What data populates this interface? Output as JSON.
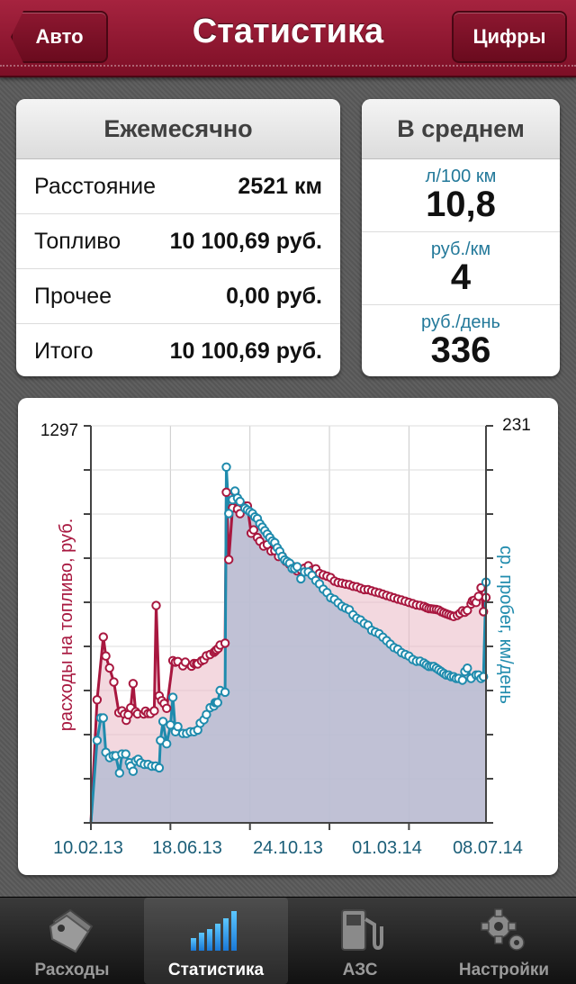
{
  "nav": {
    "title": "Статистика",
    "back_label": "Авто",
    "right_label": "Цифры"
  },
  "monthly": {
    "header": "Ежемесячно",
    "rows": [
      {
        "label": "Расстояние",
        "value": "2521 км"
      },
      {
        "label": "Топливо",
        "value": "10 100,69 руб."
      },
      {
        "label": "Прочее",
        "value": "0,00 руб."
      },
      {
        "label": "Итого",
        "value": "10 100,69 руб."
      }
    ]
  },
  "average": {
    "header": "В среднем",
    "items": [
      {
        "label": "л/100 км",
        "value": "10,8"
      },
      {
        "label": "руб./км",
        "value": "4"
      },
      {
        "label": "руб./день",
        "value": "336"
      }
    ]
  },
  "chart_data": {
    "type": "area",
    "x_tick_labels": [
      "10.02.13",
      "18.06.13",
      "24.10.13",
      "01.03.14",
      "08.07.14"
    ],
    "x_range": [
      "10.02.13",
      "08.07.14"
    ],
    "y_left": {
      "label": "расходы на топливо, руб.",
      "max_label": "1297",
      "range": [
        0,
        1297
      ]
    },
    "y_right": {
      "label": "ср. пробег, км/день",
      "max_label": "231",
      "range": [
        0,
        231
      ]
    },
    "grid": true,
    "series": [
      {
        "name": "расходы на топливо, руб.",
        "axis": "left",
        "color": "#a8173f",
        "fill": "#e9b8c4",
        "points": [
          [
            0,
            0
          ],
          [
            10,
            402
          ],
          [
            20,
            607
          ],
          [
            24,
            545
          ],
          [
            30,
            506
          ],
          [
            37,
            460
          ],
          [
            45,
            360
          ],
          [
            50,
            366
          ],
          [
            54,
            355
          ],
          [
            57,
            335
          ],
          [
            60,
            353
          ],
          [
            64,
            376
          ],
          [
            68,
            455
          ],
          [
            72,
            363
          ],
          [
            75,
            356
          ],
          [
            85,
            356
          ],
          [
            88,
            365
          ],
          [
            92,
            357
          ],
          [
            96,
            357
          ],
          [
            102,
            366
          ],
          [
            105,
            710
          ],
          [
            110,
            415
          ],
          [
            114,
            399
          ],
          [
            118,
            390
          ],
          [
            122,
            374
          ],
          [
            132,
            530
          ],
          [
            136,
            525
          ],
          [
            140,
            527
          ],
          [
            148,
            513
          ],
          [
            152,
            525
          ],
          [
            162,
            512
          ],
          [
            166,
            521
          ],
          [
            170,
            520
          ],
          [
            172,
            519
          ],
          [
            178,
            529
          ],
          [
            182,
            533
          ],
          [
            186,
            546
          ],
          [
            192,
            550
          ],
          [
            198,
            557
          ],
          [
            200,
            561
          ],
          [
            202,
            565
          ],
          [
            205,
            570
          ],
          [
            208,
            581
          ],
          [
            216,
            587
          ],
          [
            218,
            1080
          ],
          [
            222,
            860
          ],
          [
            228,
            1029
          ],
          [
            232,
            1080
          ],
          [
            236,
            1025
          ],
          [
            240,
            1010
          ],
          [
            248,
            1035
          ],
          [
            252,
            1035
          ],
          [
            258,
            946
          ],
          [
            262,
            957
          ],
          [
            268,
            932
          ],
          [
            272,
            920
          ],
          [
            278,
            904
          ],
          [
            284,
            909
          ],
          [
            290,
            888
          ],
          [
            296,
            889
          ],
          [
            302,
            870
          ],
          [
            308,
            871
          ],
          [
            314,
            854
          ],
          [
            320,
            844
          ],
          [
            326,
            837
          ],
          [
            332,
            823
          ],
          [
            338,
            827
          ],
          [
            344,
            832
          ],
          [
            350,
            840
          ],
          [
            356,
            825
          ],
          [
            362,
            830
          ],
          [
            368,
            815
          ],
          [
            374,
            810
          ],
          [
            380,
            806
          ],
          [
            386,
            801
          ],
          [
            392,
            790
          ],
          [
            398,
            785
          ],
          [
            404,
            783
          ],
          [
            410,
            780
          ],
          [
            416,
            778
          ],
          [
            422,
            773
          ],
          [
            428,
            771
          ],
          [
            434,
            766
          ],
          [
            440,
            762
          ],
          [
            446,
            762
          ],
          [
            452,
            758
          ],
          [
            458,
            754
          ],
          [
            464,
            751
          ],
          [
            470,
            747
          ],
          [
            476,
            743
          ],
          [
            482,
            739
          ],
          [
            488,
            735
          ],
          [
            494,
            731
          ],
          [
            500,
            728
          ],
          [
            506,
            724
          ],
          [
            512,
            720
          ],
          [
            518,
            716
          ],
          [
            524,
            712
          ],
          [
            530,
            710
          ],
          [
            536,
            707
          ],
          [
            540,
            703
          ],
          [
            544,
            700
          ],
          [
            548,
            699
          ],
          [
            552,
            698
          ],
          [
            556,
            697
          ],
          [
            560,
            695
          ],
          [
            564,
            690
          ],
          [
            568,
            686
          ],
          [
            572,
            683
          ],
          [
            576,
            680
          ],
          [
            580,
            677
          ],
          [
            584,
            674
          ],
          [
            590,
            678
          ],
          [
            594,
            684
          ],
          [
            598,
            693
          ],
          [
            602,
            688
          ],
          [
            606,
            694
          ],
          [
            612,
            715
          ],
          [
            614,
            725
          ],
          [
            617,
            727
          ],
          [
            620,
            720
          ],
          [
            624,
            740
          ],
          [
            628,
            768
          ],
          [
            632,
            690
          ],
          [
            636,
            736
          ]
        ]
      },
      {
        "name": "ср. пробег, км/день",
        "axis": "right",
        "color": "#1f8bad",
        "fill": "#b6bdd3",
        "points": [
          [
            0,
            0
          ],
          [
            10,
            48
          ],
          [
            16,
            61
          ],
          [
            20,
            61
          ],
          [
            24,
            41
          ],
          [
            30,
            38
          ],
          [
            36,
            39
          ],
          [
            40,
            39
          ],
          [
            46,
            29
          ],
          [
            50,
            40
          ],
          [
            56,
            40
          ],
          [
            62,
            35
          ],
          [
            64,
            33
          ],
          [
            68,
            30
          ],
          [
            72,
            36
          ],
          [
            76,
            37
          ],
          [
            80,
            35
          ],
          [
            86,
            34
          ],
          [
            92,
            34
          ],
          [
            98,
            33
          ],
          [
            104,
            33
          ],
          [
            110,
            32
          ],
          [
            112,
            48
          ],
          [
            116,
            59
          ],
          [
            122,
            46
          ],
          [
            128,
            57
          ],
          [
            132,
            73
          ],
          [
            136,
            53
          ],
          [
            140,
            56
          ],
          [
            148,
            52
          ],
          [
            154,
            52
          ],
          [
            160,
            53
          ],
          [
            166,
            53
          ],
          [
            172,
            54
          ],
          [
            176,
            58
          ],
          [
            182,
            60
          ],
          [
            186,
            63
          ],
          [
            192,
            67
          ],
          [
            198,
            68
          ],
          [
            200,
            70
          ],
          [
            202,
            70
          ],
          [
            204,
            70
          ],
          [
            208,
            77
          ],
          [
            216,
            76
          ],
          [
            218,
            207
          ],
          [
            222,
            180
          ],
          [
            228,
            188
          ],
          [
            232,
            193
          ],
          [
            236,
            189
          ],
          [
            240,
            187
          ],
          [
            248,
            183
          ],
          [
            252,
            182
          ],
          [
            256,
            181
          ],
          [
            260,
            180
          ],
          [
            264,
            178
          ],
          [
            268,
            177
          ],
          [
            272,
            174
          ],
          [
            276,
            172
          ],
          [
            280,
            170
          ],
          [
            284,
            168
          ],
          [
            288,
            166
          ],
          [
            292,
            164
          ],
          [
            296,
            163
          ],
          [
            300,
            160
          ],
          [
            304,
            158
          ],
          [
            308,
            155
          ],
          [
            312,
            153
          ],
          [
            316,
            152
          ],
          [
            320,
            151
          ],
          [
            324,
            148
          ],
          [
            328,
            148
          ],
          [
            332,
            149
          ],
          [
            338,
            142
          ],
          [
            344,
            146
          ],
          [
            350,
            146
          ],
          [
            356,
            144
          ],
          [
            362,
            141
          ],
          [
            368,
            139
          ],
          [
            374,
            136
          ],
          [
            380,
            134
          ],
          [
            386,
            131
          ],
          [
            392,
            130
          ],
          [
            398,
            128
          ],
          [
            404,
            126
          ],
          [
            410,
            125
          ],
          [
            416,
            124
          ],
          [
            422,
            121
          ],
          [
            428,
            119
          ],
          [
            434,
            118
          ],
          [
            440,
            116
          ],
          [
            446,
            115
          ],
          [
            452,
            112
          ],
          [
            458,
            111
          ],
          [
            464,
            110
          ],
          [
            470,
            108
          ],
          [
            476,
            106
          ],
          [
            482,
            104
          ],
          [
            488,
            102
          ],
          [
            494,
            101
          ],
          [
            500,
            99
          ],
          [
            506,
            98
          ],
          [
            512,
            97
          ],
          [
            518,
            95
          ],
          [
            524,
            94
          ],
          [
            530,
            94
          ],
          [
            536,
            93
          ],
          [
            540,
            92
          ],
          [
            544,
            91
          ],
          [
            548,
            91
          ],
          [
            552,
            91
          ],
          [
            556,
            90
          ],
          [
            560,
            89
          ],
          [
            564,
            88
          ],
          [
            568,
            87
          ],
          [
            572,
            86
          ],
          [
            576,
            86
          ],
          [
            580,
            85
          ],
          [
            584,
            85
          ],
          [
            588,
            84
          ],
          [
            592,
            84
          ],
          [
            598,
            83
          ],
          [
            602,
            88
          ],
          [
            606,
            90
          ],
          [
            612,
            84
          ],
          [
            620,
            86
          ],
          [
            624,
            86
          ],
          [
            628,
            84
          ],
          [
            632,
            85
          ],
          [
            636,
            140
          ]
        ]
      }
    ]
  },
  "tabs": [
    {
      "label": "Расходы",
      "icon": "tags-icon"
    },
    {
      "label": "Статистика",
      "icon": "bar-chart-icon"
    },
    {
      "label": "АЗС",
      "icon": "fuel-pump-icon"
    },
    {
      "label": "Настройки",
      "icon": "gears-icon"
    }
  ],
  "active_tab": 1
}
